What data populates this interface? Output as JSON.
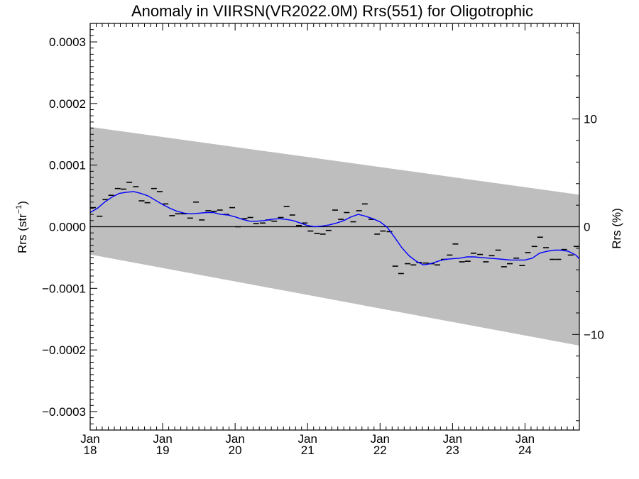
{
  "chart_data": {
    "type": "scatter",
    "title": "Anomaly in VIIRSN(VR2022.0M) Rrs(551) for Oligotrophic",
    "ylabel": "Rrs (str⁻¹)",
    "ylabel_base": "Rrs (str",
    "ylabel_sup": "−1",
    "ylabel_close": ")",
    "y2label": "Rrs (%)",
    "xlim": [
      2018.0,
      2024.75
    ],
    "ylim": [
      -0.00033,
      0.00033
    ],
    "y2lim": [
      -18.87,
      18.87
    ],
    "y_ticks": [
      {
        "value": 0.0003,
        "label": "0.0003"
      },
      {
        "value": 0.0002,
        "label": "0.0002"
      },
      {
        "value": 0.0001,
        "label": "0.0001"
      },
      {
        "value": 0.0,
        "label": "0.0000"
      },
      {
        "value": -0.0001,
        "label": "−0.0001"
      },
      {
        "value": -0.0002,
        "label": "−0.0002"
      },
      {
        "value": -0.0003,
        "label": "−0.0003"
      }
    ],
    "y2_ticks": [
      {
        "value": 10,
        "label": "10"
      },
      {
        "value": 0,
        "label": "0"
      },
      {
        "value": -10,
        "label": "−10"
      }
    ],
    "x_ticks": [
      {
        "value": 2018,
        "month": "Jan",
        "year": "18"
      },
      {
        "value": 2019,
        "month": "Jan",
        "year": "19"
      },
      {
        "value": 2020,
        "month": "Jan",
        "year": "20"
      },
      {
        "value": 2021,
        "month": "Jan",
        "year": "21"
      },
      {
        "value": 2022,
        "month": "Jan",
        "year": "22"
      },
      {
        "value": 2023,
        "month": "Jan",
        "year": "23"
      },
      {
        "value": 2024,
        "month": "Jan",
        "year": "24"
      }
    ],
    "band": {
      "x": [
        2018.0,
        2024.75
      ],
      "upper": [
        0.000162,
        5.2e-05
      ],
      "lower": [
        -4.5e-05,
        -0.000193
      ],
      "color": "#bebebe"
    },
    "zero_line": 0.0,
    "series": [
      {
        "kind": "monthly",
        "color": "#000000",
        "x": [
          2018.04,
          2018.13,
          2018.21,
          2018.29,
          2018.38,
          2018.46,
          2018.54,
          2018.63,
          2018.71,
          2018.79,
          2018.88,
          2018.96,
          2019.04,
          2019.13,
          2019.21,
          2019.29,
          2019.38,
          2019.46,
          2019.54,
          2019.63,
          2019.71,
          2019.79,
          2019.88,
          2019.96,
          2020.04,
          2020.13,
          2020.21,
          2020.29,
          2020.38,
          2020.46,
          2020.54,
          2020.63,
          2020.71,
          2020.79,
          2020.88,
          2020.96,
          2021.04,
          2021.13,
          2021.21,
          2021.29,
          2021.38,
          2021.46,
          2021.54,
          2021.63,
          2021.71,
          2021.79,
          2021.88,
          2021.96,
          2022.04,
          2022.13,
          2022.21,
          2022.29,
          2022.38,
          2022.46,
          2022.54,
          2022.63,
          2022.71,
          2022.79,
          2022.88,
          2022.96,
          2023.04,
          2023.13,
          2023.21,
          2023.29,
          2023.38,
          2023.46,
          2023.54,
          2023.63,
          2023.71,
          2023.79,
          2023.88,
          2023.96,
          2024.04,
          2024.13,
          2024.21,
          2024.29,
          2024.38,
          2024.46,
          2024.54,
          2024.63,
          2024.71
        ],
        "values": [
          3.1e-05,
          1.7e-05,
          4.4e-05,
          5.1e-05,
          6.2e-05,
          6.1e-05,
          7.2e-05,
          6.5e-05,
          4.2e-05,
          3.9e-05,
          6.2e-05,
          5.7e-05,
          3.7e-05,
          1.8e-05,
          2.1e-05,
          2.1e-05,
          1.4e-05,
          4e-05,
          1.1e-05,
          2.6e-05,
          2.5e-05,
          2.7e-05,
          2e-05,
          3.1e-05,
          0.0,
          1.3e-05,
          1.5e-05,
          5e-06,
          6e-06,
          1.1e-05,
          9e-06,
          1.5e-05,
          3.3e-05,
          1.9e-05,
          2e-06,
          6e-06,
          -7e-06,
          -1.1e-05,
          -1.2e-05,
          -6e-06,
          2.7e-05,
          1.2e-05,
          2.3e-05,
          8e-06,
          2.6e-05,
          3.7e-05,
          1.2e-05,
          -1.2e-05,
          -7e-06,
          -8e-06,
          -6.4e-05,
          -7.6e-05,
          -6e-05,
          -6.2e-05,
          -5.8e-05,
          -5.9e-05,
          -6e-05,
          -6.2e-05,
          -5.3e-05,
          -4.6e-05,
          -2.8e-05,
          -5.7e-05,
          -5.6e-05,
          -4.3e-05,
          -4.5e-05,
          -5.7e-05,
          -4.7e-05,
          -3.8e-05,
          -6.5e-05,
          -6e-05,
          -5.1e-05,
          -6.3e-05,
          -4.2e-05,
          -3.2e-05,
          -1.7e-05,
          -3.4e-05,
          -5.3e-05,
          -5.3e-05,
          -3.7e-05,
          -4.6e-05,
          -3.2e-05
        ]
      },
      {
        "kind": "running-mean",
        "color": "#0000ff",
        "x": [
          2018.0,
          2018.1,
          2018.2,
          2018.3,
          2018.4,
          2018.5,
          2018.6,
          2018.7,
          2018.8,
          2018.9,
          2019.0,
          2019.1,
          2019.2,
          2019.3,
          2019.4,
          2019.5,
          2019.6,
          2019.7,
          2019.8,
          2019.9,
          2020.0,
          2020.1,
          2020.2,
          2020.3,
          2020.4,
          2020.5,
          2020.6,
          2020.7,
          2020.8,
          2020.9,
          2021.0,
          2021.1,
          2021.2,
          2021.3,
          2021.4,
          2021.5,
          2021.6,
          2021.7,
          2021.8,
          2021.9,
          2022.0,
          2022.1,
          2022.2,
          2022.3,
          2022.4,
          2022.5,
          2022.6,
          2022.7,
          2022.8,
          2022.9,
          2023.0,
          2023.1,
          2023.2,
          2023.3,
          2023.4,
          2023.5,
          2023.6,
          2023.7,
          2023.8,
          2023.9,
          2024.0,
          2024.1,
          2024.2,
          2024.3,
          2024.4,
          2024.5,
          2024.6,
          2024.7,
          2024.75
        ],
        "values": [
          2.3e-05,
          3e-05,
          4e-05,
          4.8e-05,
          5.4e-05,
          5.6e-05,
          5.7e-05,
          5.4e-05,
          5e-05,
          4.3e-05,
          3.6e-05,
          3e-05,
          2.5e-05,
          2.2e-05,
          2.1e-05,
          2.2e-05,
          2.3e-05,
          2.3e-05,
          2e-05,
          1.9e-05,
          1.6e-05,
          1.2e-05,
          9e-06,
          9e-06,
          1e-05,
          1.2e-05,
          1.3e-05,
          1.2e-05,
          1e-05,
          6e-06,
          2e-06,
          0.0,
          1e-06,
          3e-06,
          6e-06,
          1e-05,
          1.6e-05,
          2e-05,
          1.7e-05,
          1.3e-05,
          8e-06,
          -1e-06,
          -1.7e-05,
          -3.4e-05,
          -4.7e-05,
          -5.6e-05,
          -6.2e-05,
          -6e-05,
          -5.6e-05,
          -5.3e-05,
          -5.2e-05,
          -5.1e-05,
          -4.9e-05,
          -4.9e-05,
          -5e-05,
          -5.1e-05,
          -5.2e-05,
          -5.3e-05,
          -5.4e-05,
          -5.4e-05,
          -5.4e-05,
          -5.1e-05,
          -4.3e-05,
          -4e-05,
          -3.8e-05,
          -3.8e-05,
          -4e-05,
          -4.6e-05,
          -5.2e-05
        ]
      }
    ]
  }
}
